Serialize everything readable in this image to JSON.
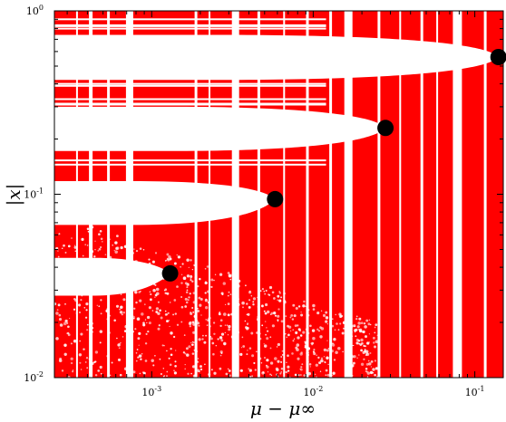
{
  "chart_data": {
    "type": "scatter",
    "title": "",
    "xlabel": "μ − μ∞",
    "ylabel": "|x|",
    "x_scale": "log",
    "y_scale": "log",
    "xlim": [
      0.00025,
      0.15
    ],
    "ylim": [
      0.01,
      1.0
    ],
    "x_tick_labels": [
      {
        "value": 0.001,
        "base": "10",
        "exp": "-3"
      },
      {
        "value": 0.01,
        "base": "10",
        "exp": "-2"
      },
      {
        "value": 0.1,
        "base": "10",
        "exp": "-1"
      }
    ],
    "y_tick_labels": [
      {
        "value": 0.01,
        "base": "10",
        "exp": "-2"
      },
      {
        "value": 0.1,
        "base": "10",
        "exp": "-1"
      },
      {
        "value": 1.0,
        "base": "10",
        "exp": "0"
      }
    ],
    "grid": false,
    "colors": {
      "fill": "#ff0000",
      "marker": "#000000",
      "background": "#ffffff"
    },
    "series": [
      {
        "marker": "filled-circle",
        "points": [
          {
            "x": 0.0013,
            "y": 0.037
          },
          {
            "x": 0.0058,
            "y": 0.094
          },
          {
            "x": 0.028,
            "y": 0.23
          },
          {
            "x": 0.14,
            "y": 0.56
          }
        ]
      }
    ]
  }
}
